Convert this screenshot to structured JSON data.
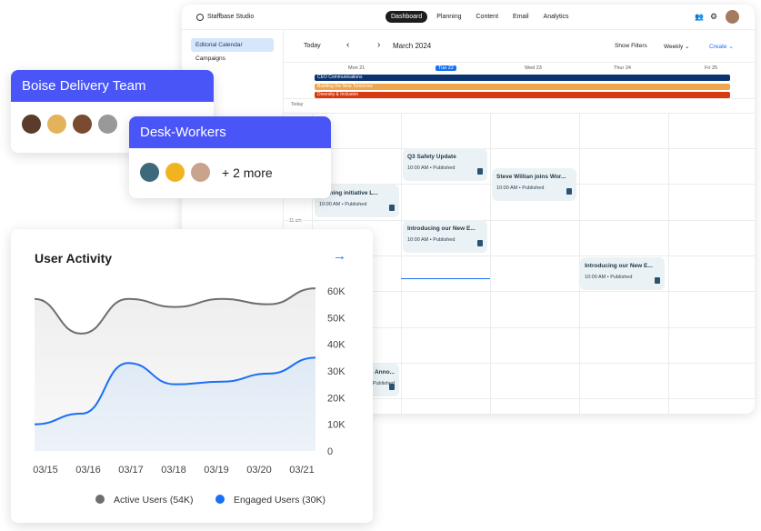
{
  "app": {
    "title": "Staffbase Studio",
    "nav": [
      "Dashboard",
      "Planning",
      "Content",
      "Email",
      "Analytics"
    ],
    "active_nav": "Dashboard"
  },
  "sidebar": {
    "items": [
      "Editorial Calendar",
      "Campaigns"
    ]
  },
  "toolbar": {
    "today": "Today",
    "prev": "‹",
    "next": "›",
    "month": "March 2024",
    "filters": "Show Filters",
    "view": "Weekly ⌄",
    "create": "Create ⌄"
  },
  "days": [
    "Mon 21",
    "Tue 22",
    "Wed 23",
    "Thur 24",
    "Fri 25"
  ],
  "campaigns": [
    {
      "label": "CEO Communications",
      "color": "#0a3370"
    },
    {
      "label": "Building the New Tomorrow",
      "color": "#f0a64d"
    },
    {
      "label": "Diversity & Inclusion",
      "color": "#d83a10"
    }
  ],
  "row_labels": {
    "today": "Today",
    "eleven": "11 am"
  },
  "events": [
    {
      "title": "Q3 Safety Update",
      "meta": "10:00 AM • Published"
    },
    {
      "title": "Steve Willian joins Wor...",
      "meta": "10:00 AM • Published"
    },
    {
      "title": "Training initiative L...",
      "meta": "10:00 AM • Published"
    },
    {
      "title": "Introducing our New E...",
      "meta": "10:00 AM • Published"
    },
    {
      "title": "Introducing our New E...",
      "meta": "10:00 AM • Published"
    },
    {
      "title": "Anno...",
      "meta": "10:00 AM • Published"
    }
  ],
  "teams": [
    {
      "name": "Boise Delivery Team"
    },
    {
      "name": "Desk-Workers",
      "more": "+ 2 more"
    }
  ],
  "activity": {
    "title": "User Activity",
    "arrow": "→"
  },
  "chart_data": {
    "type": "area",
    "title": "User Activity",
    "categories": [
      "03/15",
      "03/16",
      "03/17",
      "03/18",
      "03/19",
      "03/20",
      "03/21"
    ],
    "yticks": [
      "0",
      "10K",
      "20K",
      "30K",
      "40K",
      "50K",
      "60K"
    ],
    "ylim": [
      0,
      60000
    ],
    "series": [
      {
        "name": "Active Users (54K)",
        "color": "#6e6e6e",
        "values": [
          57000,
          44000,
          57000,
          54000,
          57000,
          55000,
          61000
        ]
      },
      {
        "name": "Engaged Users (30K)",
        "color": "#1a6ff5",
        "values": [
          10000,
          14000,
          33000,
          25000,
          26000,
          29000,
          35000
        ]
      }
    ]
  }
}
